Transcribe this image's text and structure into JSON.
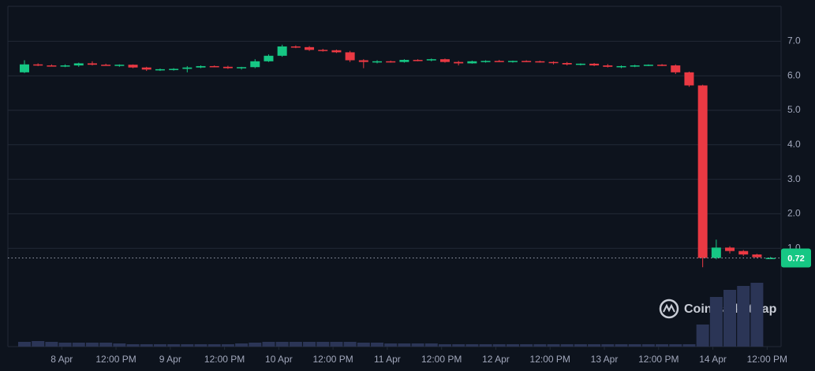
{
  "chart_data": {
    "type": "candlestick",
    "up_color": "#16c784",
    "down_color": "#ea3943",
    "volume_color": "#2b3556",
    "grid": true,
    "ylim": [
      0,
      8
    ],
    "yticks": [
      {
        "value": 1,
        "label": "1.0"
      },
      {
        "value": 2,
        "label": "2.0"
      },
      {
        "value": 3,
        "label": "3.0"
      },
      {
        "value": 4,
        "label": "4.0"
      },
      {
        "value": 5,
        "label": "5.0"
      },
      {
        "value": 6,
        "label": "6.0"
      },
      {
        "value": 7,
        "label": "7.0"
      }
    ],
    "xlim": [
      -0.5,
      56.5
    ],
    "xticks": [
      {
        "value": 2.75,
        "label": "8 Apr"
      },
      {
        "value": 6.75,
        "label": "12:00 PM"
      },
      {
        "value": 10.75,
        "label": "9 Apr"
      },
      {
        "value": 14.75,
        "label": "12:00 PM"
      },
      {
        "value": 18.75,
        "label": "10 Apr"
      },
      {
        "value": 22.75,
        "label": "12:00 PM"
      },
      {
        "value": 26.75,
        "label": "11 Apr"
      },
      {
        "value": 30.75,
        "label": "12:00 PM"
      },
      {
        "value": 34.75,
        "label": "12 Apr"
      },
      {
        "value": 38.75,
        "label": "12:00 PM"
      },
      {
        "value": 42.75,
        "label": "13 Apr"
      },
      {
        "value": 46.75,
        "label": "12:00 PM"
      },
      {
        "value": 50.75,
        "label": "14 Apr"
      },
      {
        "value": 54.75,
        "label": "12:00 PM"
      }
    ],
    "open": [
      6.1,
      6.33,
      6.3,
      6.28,
      6.3,
      6.36,
      6.32,
      6.3,
      6.32,
      6.24,
      6.18,
      6.19,
      6.2,
      6.24,
      6.28,
      6.26,
      6.22,
      6.25,
      6.42,
      6.58,
      6.85,
      6.83,
      6.75,
      6.74,
      6.68,
      6.45,
      6.4,
      6.42,
      6.4,
      6.46,
      6.45,
      6.48,
      6.4,
      6.36,
      6.42,
      6.43,
      6.42,
      6.43,
      6.42,
      6.4,
      6.37,
      6.33,
      6.35,
      6.3,
      6.26,
      6.28,
      6.3,
      6.32,
      6.3,
      6.1,
      5.72,
      0.72,
      1.02,
      0.92,
      0.82,
      0.71
    ],
    "high": [
      6.45,
      6.36,
      6.33,
      6.33,
      6.38,
      6.42,
      6.35,
      6.33,
      6.33,
      6.26,
      6.21,
      6.22,
      6.28,
      6.3,
      6.3,
      6.29,
      6.26,
      6.48,
      6.62,
      6.9,
      6.88,
      6.86,
      6.78,
      6.76,
      6.72,
      6.48,
      6.45,
      6.44,
      6.48,
      6.48,
      6.5,
      6.5,
      6.43,
      6.44,
      6.45,
      6.46,
      6.44,
      6.45,
      6.44,
      6.42,
      6.4,
      6.36,
      6.37,
      6.34,
      6.3,
      6.32,
      6.33,
      6.34,
      6.33,
      6.12,
      5.74,
      1.25,
      1.06,
      0.95,
      0.84,
      0.75
    ],
    "low": [
      6.08,
      6.28,
      6.27,
      6.25,
      6.26,
      6.3,
      6.29,
      6.26,
      6.22,
      6.14,
      6.14,
      6.15,
      6.1,
      6.22,
      6.25,
      6.2,
      6.18,
      6.22,
      6.4,
      6.55,
      6.8,
      6.72,
      6.7,
      6.66,
      6.4,
      6.22,
      6.36,
      6.38,
      6.38,
      6.42,
      6.42,
      6.38,
      6.3,
      6.35,
      6.38,
      6.4,
      6.38,
      6.4,
      6.38,
      6.33,
      6.3,
      6.3,
      6.28,
      6.24,
      6.22,
      6.25,
      6.28,
      6.28,
      6.05,
      5.68,
      0.45,
      0.68,
      0.85,
      0.78,
      0.72,
      0.7
    ],
    "close": [
      6.33,
      6.3,
      6.28,
      6.3,
      6.36,
      6.32,
      6.3,
      6.32,
      6.24,
      6.18,
      6.19,
      6.2,
      6.24,
      6.28,
      6.26,
      6.22,
      6.25,
      6.42,
      6.58,
      6.85,
      6.83,
      6.75,
      6.74,
      6.68,
      6.45,
      6.4,
      6.42,
      6.4,
      6.46,
      6.45,
      6.48,
      6.4,
      6.36,
      6.42,
      6.43,
      6.42,
      6.43,
      6.42,
      6.4,
      6.37,
      6.33,
      6.35,
      6.3,
      6.26,
      6.28,
      6.3,
      6.32,
      6.3,
      6.1,
      5.72,
      0.72,
      1.02,
      0.92,
      0.82,
      0.74,
      0.72
    ],
    "volume_lim": [
      0,
      100
    ],
    "volume": [
      6,
      7,
      6,
      5,
      5,
      5,
      5,
      4,
      3,
      3,
      3,
      3,
      3,
      3,
      3,
      3,
      4,
      5,
      6,
      6,
      6,
      6,
      6,
      6,
      6,
      5,
      5,
      4,
      4,
      4,
      4,
      3,
      3,
      3,
      3,
      3,
      3,
      3,
      3,
      3,
      3,
      3,
      3,
      3,
      3,
      3,
      3,
      3,
      3,
      3,
      28,
      63,
      72,
      77,
      81,
      null
    ],
    "last_price": 0.72,
    "watermark": "CoinMarketCap"
  }
}
